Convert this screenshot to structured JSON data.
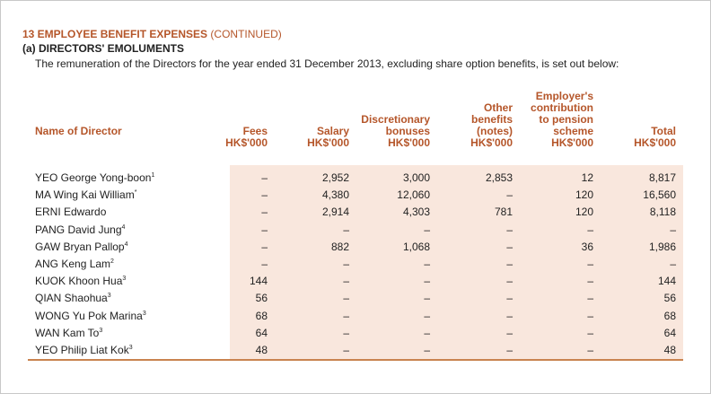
{
  "header": {
    "section": "13 EMPLOYEE BENEFIT EXPENSES",
    "continued": "(CONTINUED)",
    "subtitle": "(a) DIRECTORS' EMOLUMENTS",
    "intro": "The remuneration of the Directors for the year ended 31 December 2013, excluding share option benefits, is set out below:"
  },
  "table": {
    "columns": [
      [
        "Name of Director"
      ],
      [
        "Fees",
        "HK$'000"
      ],
      [
        "Salary",
        "HK$'000"
      ],
      [
        "Discretionary",
        "bonuses",
        "HK$'000"
      ],
      [
        "Other",
        "benefits",
        "(notes)",
        "HK$'000"
      ],
      [
        "Employer's",
        "contribution",
        "to pension",
        "scheme",
        "HK$'000"
      ],
      [
        "Total",
        "HK$'000"
      ]
    ],
    "rows": [
      {
        "name": "YEO George Yong-boon",
        "note": "1",
        "cells": [
          "–",
          "2,952",
          "3,000",
          "2,853",
          "12",
          "8,817"
        ]
      },
      {
        "name": "MA Wing Kai William",
        "note": "*",
        "cells": [
          "–",
          "4,380",
          "12,060",
          "–",
          "120",
          "16,560"
        ]
      },
      {
        "name": "ERNI Edwardo",
        "note": null,
        "cells": [
          "–",
          "2,914",
          "4,303",
          "781",
          "120",
          "8,118"
        ]
      },
      {
        "name": "PANG David Jung",
        "note": "4",
        "cells": [
          "–",
          "–",
          "–",
          "–",
          "–",
          "–"
        ]
      },
      {
        "name": "GAW Bryan Pallop",
        "note": "4",
        "cells": [
          "–",
          "882",
          "1,068",
          "–",
          "36",
          "1,986"
        ]
      },
      {
        "name": "ANG Keng Lam",
        "note": "2",
        "cells": [
          "–",
          "–",
          "–",
          "–",
          "–",
          "–"
        ]
      },
      {
        "name": "KUOK Khoon Hua",
        "note": "3",
        "cells": [
          "144",
          "–",
          "–",
          "–",
          "–",
          "144"
        ]
      },
      {
        "name": "QIAN Shaohua",
        "note": "3",
        "cells": [
          "56",
          "–",
          "–",
          "–",
          "–",
          "56"
        ]
      },
      {
        "name": "WONG Yu Pok Marina",
        "note": "3",
        "cells": [
          "68",
          "–",
          "–",
          "–",
          "–",
          "68"
        ]
      },
      {
        "name": "WAN Kam To",
        "note": "3",
        "cells": [
          "64",
          "–",
          "–",
          "–",
          "–",
          "64"
        ]
      },
      {
        "name": "YEO Philip Liat Kok",
        "note": "3",
        "cells": [
          "48",
          "–",
          "–",
          "–",
          "–",
          "48"
        ]
      }
    ]
  }
}
